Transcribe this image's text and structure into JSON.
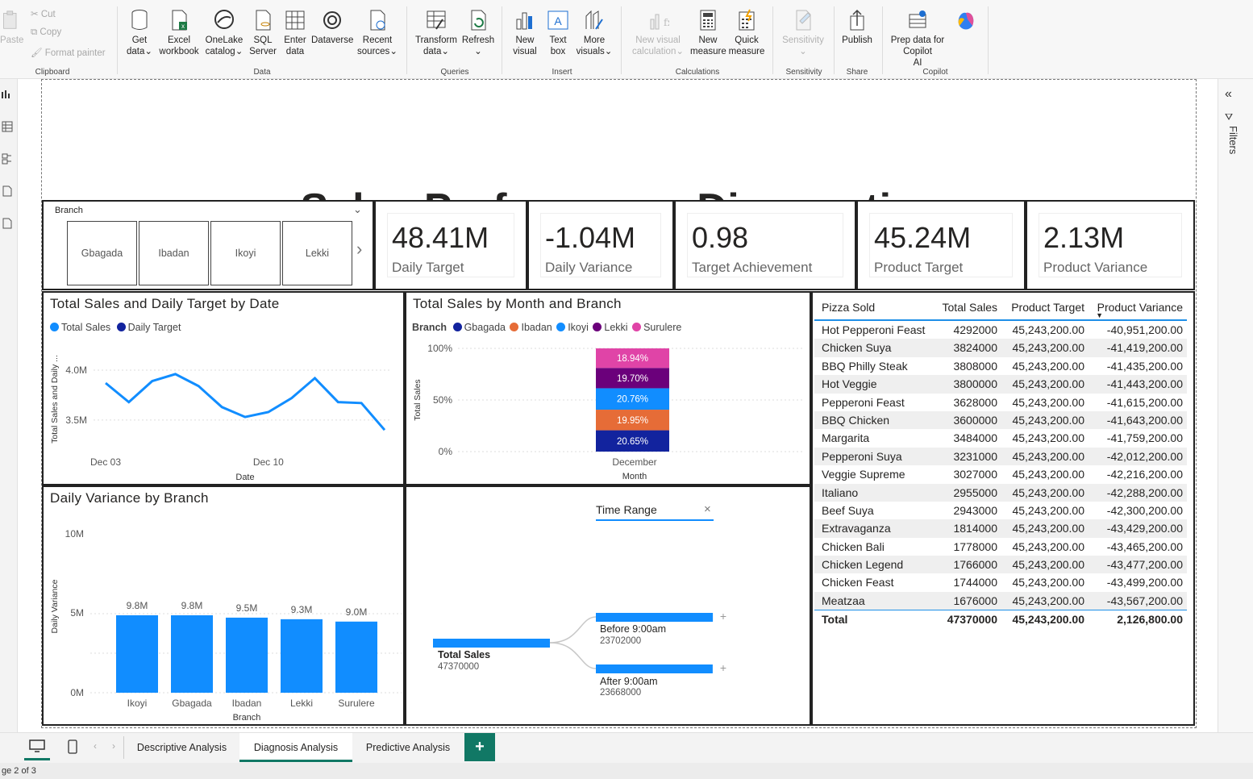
{
  "ribbon": {
    "clipboard": {
      "paste": "Paste",
      "cut": "Cut",
      "copy": "Copy",
      "format_painter": "Format painter",
      "group": "Clipboard"
    },
    "data": {
      "get_data": [
        "Get",
        "data"
      ],
      "excel": [
        "Excel",
        "workbook"
      ],
      "onelake": [
        "OneLake",
        "catalog"
      ],
      "sql": [
        "SQL",
        "Server"
      ],
      "enter": [
        "Enter",
        "data"
      ],
      "dataverse": "Dataverse",
      "recent": [
        "Recent",
        "sources"
      ],
      "group": "Data"
    },
    "queries": {
      "transform": [
        "Transform",
        "data"
      ],
      "refresh": "Refresh",
      "group": "Queries"
    },
    "insert": {
      "new_visual": [
        "New",
        "visual"
      ],
      "text_box": [
        "Text",
        "box"
      ],
      "more_visuals": [
        "More",
        "visuals"
      ],
      "group": "Insert"
    },
    "calculations": {
      "new_visual_calc": [
        "New visual",
        "calculation"
      ],
      "new_measure": [
        "New",
        "measure"
      ],
      "quick_measure": [
        "Quick",
        "measure"
      ],
      "group": "Calculations"
    },
    "sensitivity": {
      "label": "Sensitivity",
      "group": "Sensitivity"
    },
    "share": {
      "publish": "Publish",
      "group": "Share"
    },
    "copilot": {
      "prep": [
        "Prep data for Copilot",
        "AI"
      ],
      "group": "Copilot"
    }
  },
  "filters_label": "Filters",
  "report_title": "Sales Performance Diagnostics",
  "slicer": {
    "label": "Branch",
    "items": [
      "Gbagada",
      "Ibadan",
      "Ikoyi",
      "Lekki"
    ]
  },
  "kpis": [
    {
      "value": "48.41M",
      "label": "Daily Target"
    },
    {
      "value": "-1.04M",
      "label": "Daily Variance"
    },
    {
      "value": "0.98",
      "label": "Target Achievement"
    },
    {
      "value": "45.24M",
      "label": "Product Target"
    },
    {
      "value": "2.13M",
      "label": "Product Variance"
    }
  ],
  "line_chart": {
    "title": "Total Sales and Daily Target by Date",
    "legend": [
      {
        "name": "Total Sales",
        "color": "#118DFF"
      },
      {
        "name": "Daily Target",
        "color": "#12239E"
      }
    ],
    "ylabel": "Total Sales and Daily ...",
    "xlabel": "Date",
    "yticks": [
      "4.0M",
      "3.5M"
    ],
    "xticks": [
      "Dec 03",
      "Dec 10"
    ]
  },
  "stacked_chart": {
    "title": "Total Sales by Month and Branch",
    "legend_title": "Branch",
    "legend": [
      {
        "name": "Gbagada",
        "color": "#12239E"
      },
      {
        "name": "Ibadan",
        "color": "#E66C37"
      },
      {
        "name": "Ikoyi",
        "color": "#118DFF"
      },
      {
        "name": "Lekki",
        "color": "#6B007B"
      },
      {
        "name": "Surulere",
        "color": "#E044A7"
      }
    ],
    "ylabel": "Total Sales",
    "xlabel": "Month",
    "yticks": [
      "100%",
      "50%",
      "0%"
    ]
  },
  "bar_chart": {
    "title": "Daily Variance by Branch",
    "ylabel": "Daily Variance",
    "xlabel": "Branch",
    "yticks": [
      "10M",
      "5M",
      "0M"
    ]
  },
  "decomp": {
    "header": "Time Range",
    "root_label": "Total Sales",
    "root_value": "47370000",
    "nodes": [
      {
        "label": "Before 9:00am",
        "value": "23702000"
      },
      {
        "label": "After 9:00am",
        "value": "23668000"
      }
    ]
  },
  "table": {
    "headers": [
      "Pizza Sold",
      "Total Sales",
      "Product Target",
      "Product Variance"
    ],
    "rows": [
      [
        "Hot Pepperoni Feast",
        "4292000",
        "45,243,200.00",
        "-40,951,200.00"
      ],
      [
        "Chicken Suya",
        "3824000",
        "45,243,200.00",
        "-41,419,200.00"
      ],
      [
        "BBQ Philly Steak",
        "3808000",
        "45,243,200.00",
        "-41,435,200.00"
      ],
      [
        "Hot Veggie",
        "3800000",
        "45,243,200.00",
        "-41,443,200.00"
      ],
      [
        "Pepperoni Feast",
        "3628000",
        "45,243,200.00",
        "-41,615,200.00"
      ],
      [
        "BBQ Chicken",
        "3600000",
        "45,243,200.00",
        "-41,643,200.00"
      ],
      [
        "Margarita",
        "3484000",
        "45,243,200.00",
        "-41,759,200.00"
      ],
      [
        "Pepperoni Suya",
        "3231000",
        "45,243,200.00",
        "-42,012,200.00"
      ],
      [
        "Veggie Supreme",
        "3027000",
        "45,243,200.00",
        "-42,216,200.00"
      ],
      [
        "Italiano",
        "2955000",
        "45,243,200.00",
        "-42,288,200.00"
      ],
      [
        "Beef Suya",
        "2943000",
        "45,243,200.00",
        "-42,300,200.00"
      ],
      [
        "Extravaganza",
        "1814000",
        "45,243,200.00",
        "-43,429,200.00"
      ],
      [
        "Chicken Bali",
        "1778000",
        "45,243,200.00",
        "-43,465,200.00"
      ],
      [
        "Chicken Legend",
        "1766000",
        "45,243,200.00",
        "-43,477,200.00"
      ],
      [
        "Chicken Feast",
        "1744000",
        "45,243,200.00",
        "-43,499,200.00"
      ],
      [
        "Meatzaa",
        "1676000",
        "45,243,200.00",
        "-43,567,200.00"
      ]
    ],
    "total": [
      "Total",
      "47370000",
      "45,243,200.00",
      "2,126,800.00"
    ]
  },
  "tabs": [
    "Descriptive Analysis",
    "Diagnosis Analysis",
    "Predictive Analysis"
  ],
  "add_tab": "+",
  "status": "ge 2 of 3",
  "chart_data": [
    {
      "type": "line",
      "title": "Total Sales and Daily Target by Date",
      "xlabel": "Date",
      "ylabel": "Total Sales and Daily ...",
      "x": [
        "Dec 03",
        "Dec 04",
        "Dec 05",
        "Dec 06",
        "Dec 07",
        "Dec 08",
        "Dec 09",
        "Dec 10",
        "Dec 11",
        "Dec 12",
        "Dec 13",
        "Dec 14",
        "Dec 15"
      ],
      "xtick_labels": [
        "Dec 03",
        "Dec 10"
      ],
      "ylim": [
        3.2,
        4.25
      ],
      "yticks": [
        3.5,
        4.0
      ],
      "series": [
        {
          "name": "Total Sales",
          "color": "#118DFF",
          "values": [
            3.87,
            3.68,
            3.89,
            3.96,
            3.84,
            3.63,
            3.53,
            3.58,
            3.72,
            3.92,
            3.68,
            3.67,
            3.4
          ]
        }
      ]
    },
    {
      "type": "bar",
      "stacked": true,
      "percent": true,
      "title": "Total Sales by Month and Branch",
      "xlabel": "Month",
      "ylabel": "Total Sales",
      "categories": [
        "December"
      ],
      "ylim": [
        0,
        100
      ],
      "series": [
        {
          "name": "Gbagada",
          "color": "#12239E",
          "values": [
            20.65
          ]
        },
        {
          "name": "Ibadan",
          "color": "#E66C37",
          "values": [
            19.95
          ]
        },
        {
          "name": "Ikoyi",
          "color": "#118DFF",
          "values": [
            20.76
          ]
        },
        {
          "name": "Lekki",
          "color": "#6B007B",
          "values": [
            19.7
          ]
        },
        {
          "name": "Surulere",
          "color": "#E044A7",
          "values": [
            18.94
          ]
        }
      ],
      "data_labels": [
        "20.65%",
        "19.95%",
        "20.76%",
        "19.70%",
        "18.94%"
      ]
    },
    {
      "type": "bar",
      "title": "Daily Variance by Branch",
      "xlabel": "Branch",
      "ylabel": "Daily Variance",
      "categories": [
        "Ikoyi",
        "Gbagada",
        "Ibadan",
        "Lekki",
        "Surulere"
      ],
      "values": [
        9.8,
        9.8,
        9.5,
        9.3,
        9.0
      ],
      "data_labels": [
        "9.8M",
        "9.8M",
        "9.5M",
        "9.3M",
        "9.0M"
      ],
      "ylim": [
        0,
        10.5
      ],
      "color": "#118DFF"
    },
    {
      "type": "bar",
      "title": "Time Range",
      "categories": [
        "Total Sales",
        "Before 9:00am",
        "After 9:00am"
      ],
      "values": [
        47370000,
        23702000,
        23668000
      ],
      "color": "#118DFF"
    }
  ]
}
